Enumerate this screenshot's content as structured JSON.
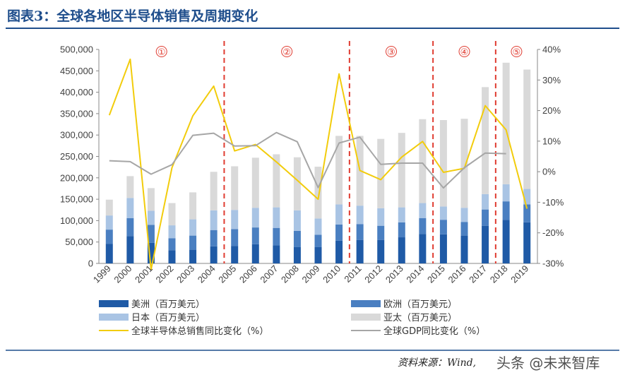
{
  "title": "图表3：全球各地区半导体销售及周期变化",
  "source": "资料来源：Wind,",
  "watermark": "头条 @未来智库",
  "colors": {
    "title": "#1f4e8c",
    "americas": "#1f5aa6",
    "europe": "#4a7fc1",
    "japan": "#a9c4e4",
    "asia_pacific": "#d9d9d9",
    "semi_line": "#f2cc0c",
    "gdp_line": "#a6a6a6",
    "phase_line": "#e03c31"
  },
  "chart_data": {
    "type": "bar",
    "stacked": true,
    "categories": [
      "1999",
      "2000",
      "2001",
      "2002",
      "2003",
      "2004",
      "2005",
      "2006",
      "2007",
      "2008",
      "2009",
      "2010",
      "2011",
      "2012",
      "2013",
      "2014",
      "2015",
      "2016",
      "2017",
      "2018",
      "2019"
    ],
    "series": [
      {
        "name": "美洲（百万美元）",
        "values": [
          46000,
          64000,
          48000,
          31000,
          32000,
          40000,
          41000,
          45000,
          42000,
          38000,
          38000,
          53000,
          55000,
          55000,
          61000,
          69000,
          68000,
          65000,
          88000,
          102000,
          96000
        ]
      },
      {
        "name": "欧洲（百万美元）",
        "values": [
          33000,
          42000,
          42000,
          28000,
          33000,
          38000,
          39000,
          39000,
          41000,
          38000,
          29000,
          38000,
          37000,
          33000,
          35000,
          37000,
          34000,
          32000,
          38000,
          43000,
          42000
        ]
      },
      {
        "name": "日本（百万美元）",
        "values": [
          33000,
          47000,
          33000,
          30000,
          38000,
          46000,
          45000,
          46000,
          48000,
          48000,
          38000,
          47000,
          43000,
          41000,
          35000,
          35000,
          31000,
          33000,
          36000,
          40000,
          36000
        ]
      },
      {
        "name": "亚太（百万美元）",
        "values": [
          37000,
          51000,
          53000,
          52000,
          63000,
          90000,
          102000,
          117000,
          124000,
          124000,
          121000,
          160000,
          163000,
          162000,
          174000,
          196000,
          202000,
          208000,
          250000,
          284000,
          279000
        ]
      }
    ],
    "lines": [
      {
        "name": "全球半导体总销售同比变化（%）",
        "values": [
          18.5,
          36.8,
          -32.0,
          1.3,
          18.3,
          28.0,
          6.8,
          8.9,
          3.2,
          -2.8,
          -9.0,
          32.0,
          0.4,
          -2.6,
          4.8,
          9.9,
          -0.2,
          1.1,
          21.6,
          13.7,
          -12.1
        ]
      },
      {
        "name": "全球GDP同比变化（%）",
        "values": [
          3.6,
          3.3,
          -0.8,
          2.3,
          11.9,
          12.6,
          8.4,
          8.5,
          12.8,
          9.8,
          -5.2,
          9.4,
          11.3,
          2.4,
          2.8,
          2.8,
          -5.3,
          1.3,
          6.1,
          5.9,
          null
        ]
      }
    ],
    "y_left": {
      "min": 0,
      "max": 500000,
      "step": 50000
    },
    "y_right": {
      "min": -30,
      "max": 40,
      "step": 10,
      "unit": "%"
    },
    "y_left_ticks": [
      "0",
      "50,000",
      "100,000",
      "150,000",
      "200,000",
      "250,000",
      "300,000",
      "350,000",
      "400,000",
      "450,000",
      "500,000"
    ],
    "y_right_ticks": [
      "-30%",
      "-20%",
      "-10%",
      "0%",
      "10%",
      "20%",
      "30%",
      "40%"
    ],
    "cycle_dividers_after": [
      "2004",
      "2010",
      "2014",
      "2017"
    ],
    "cycle_labels": [
      "①",
      "②",
      "③",
      "④",
      "⑤"
    ],
    "legend": [
      {
        "label": "美洲（百万美元）",
        "kind": "bar",
        "color": "#1f5aa6"
      },
      {
        "label": "欧洲（百万美元）",
        "kind": "bar",
        "color": "#4a7fc1"
      },
      {
        "label": "日本（百万美元）",
        "kind": "bar",
        "color": "#a9c4e4"
      },
      {
        "label": "亚太（百万美元）",
        "kind": "bar",
        "color": "#d9d9d9"
      },
      {
        "label": "全球半导体总销售同比变化（%）",
        "kind": "line",
        "color": "#f2cc0c"
      },
      {
        "label": "全球GDP同比变化（%）",
        "kind": "line",
        "color": "#a6a6a6"
      }
    ]
  }
}
